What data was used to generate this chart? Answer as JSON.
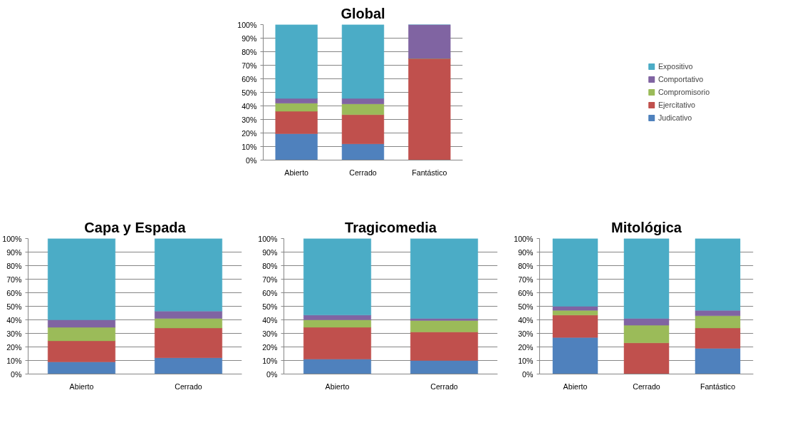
{
  "chart_data": [
    {
      "type": "bar",
      "title": "Global",
      "stacked": true,
      "legend": "right",
      "grid": "y",
      "categories": [
        "Abierto",
        "Cerrado",
        "Fantástico"
      ],
      "ylim": [
        0,
        100
      ],
      "yticks": [
        {
          "value": 0,
          "label": "0%"
        },
        {
          "value": 10,
          "label": "10%"
        },
        {
          "value": 20,
          "label": "20%"
        },
        {
          "value": 30,
          "label": "30%"
        },
        {
          "value": 40,
          "label": "40%"
        },
        {
          "value": 50,
          "label": "50%"
        },
        {
          "value": 60,
          "label": "60%"
        },
        {
          "value": 70,
          "label": "70%"
        },
        {
          "value": 80,
          "label": "80%"
        },
        {
          "value": 90,
          "label": "90%"
        },
        {
          "value": 100,
          "label": "100%"
        }
      ],
      "series": [
        {
          "name": "Judicativo",
          "color": "#4f81bd",
          "values": [
            19.5,
            12,
            0
          ]
        },
        {
          "name": "Ejercitativo",
          "color": "#c0504d",
          "values": [
            16.5,
            21.5,
            75
          ]
        },
        {
          "name": "Compromisorio",
          "color": "#9bbb59",
          "values": [
            6,
            8,
            0
          ]
        },
        {
          "name": "Comportativo",
          "color": "#8064a2",
          "values": [
            3.5,
            4,
            25
          ]
        },
        {
          "name": "Expositivo",
          "color": "#4bacc6",
          "values": [
            54.5,
            54.5,
            0
          ]
        }
      ]
    },
    {
      "type": "bar",
      "title": "Capa y Espada",
      "stacked": true,
      "grid": "y",
      "categories": [
        "Abierto",
        "Cerrado"
      ],
      "ylim": [
        0,
        100
      ],
      "yticks": [
        {
          "value": 0,
          "label": "0%"
        },
        {
          "value": 10,
          "label": "10%"
        },
        {
          "value": 20,
          "label": "20%"
        },
        {
          "value": 30,
          "label": "30%"
        },
        {
          "value": 40,
          "label": "40%"
        },
        {
          "value": 50,
          "label": "50%"
        },
        {
          "value": 60,
          "label": "60%"
        },
        {
          "value": 70,
          "label": "70%"
        },
        {
          "value": 80,
          "label": "80%"
        },
        {
          "value": 90,
          "label": "90%"
        },
        {
          "value": 100,
          "label": "100%"
        }
      ],
      "series": [
        {
          "color": "#4f81bd",
          "values": [
            9,
            12
          ]
        },
        {
          "color": "#c0504d",
          "values": [
            15.5,
            22
          ]
        },
        {
          "color": "#9bbb59",
          "values": [
            10,
            7
          ]
        },
        {
          "color": "#8064a2",
          "values": [
            5.5,
            5.5
          ]
        },
        {
          "color": "#4bacc6",
          "values": [
            60,
            53.5
          ]
        }
      ]
    },
    {
      "type": "bar",
      "title": "Tragicomedia",
      "stacked": true,
      "grid": "y",
      "categories": [
        "Abierto",
        "Cerrado"
      ],
      "ylim": [
        0,
        100
      ],
      "yticks": [
        {
          "value": 0,
          "label": "0%"
        },
        {
          "value": 10,
          "label": "10%"
        },
        {
          "value": 20,
          "label": "20%"
        },
        {
          "value": 30,
          "label": "30%"
        },
        {
          "value": 40,
          "label": "40%"
        },
        {
          "value": 50,
          "label": "50%"
        },
        {
          "value": 60,
          "label": "60%"
        },
        {
          "value": 70,
          "label": "70%"
        },
        {
          "value": 80,
          "label": "80%"
        },
        {
          "value": 90,
          "label": "90%"
        },
        {
          "value": 100,
          "label": "100%"
        }
      ],
      "series": [
        {
          "color": "#4f81bd",
          "values": [
            11,
            10
          ]
        },
        {
          "color": "#c0504d",
          "values": [
            23.5,
            21
          ]
        },
        {
          "color": "#9bbb59",
          "values": [
            5.5,
            8.5
          ]
        },
        {
          "color": "#8064a2",
          "values": [
            3.5,
            1.5
          ]
        },
        {
          "color": "#4bacc6",
          "values": [
            56.5,
            59
          ]
        }
      ]
    },
    {
      "type": "bar",
      "title": "Mitológica",
      "stacked": true,
      "grid": "y",
      "categories": [
        "Abierto",
        "Cerrado",
        "Fantástico"
      ],
      "ylim": [
        0,
        100
      ],
      "yticks": [
        {
          "value": 0,
          "label": "0%"
        },
        {
          "value": 10,
          "label": "10%"
        },
        {
          "value": 20,
          "label": "20%"
        },
        {
          "value": 30,
          "label": "30%"
        },
        {
          "value": 40,
          "label": "40%"
        },
        {
          "value": 50,
          "label": "50%"
        },
        {
          "value": 60,
          "label": "60%"
        },
        {
          "value": 70,
          "label": "70%"
        },
        {
          "value": 80,
          "label": "80%"
        },
        {
          "value": 90,
          "label": "90%"
        },
        {
          "value": 100,
          "label": "100%"
        }
      ],
      "series": [
        {
          "color": "#4f81bd",
          "values": [
            27,
            0,
            19
          ]
        },
        {
          "color": "#c0504d",
          "values": [
            16.5,
            23,
            15
          ]
        },
        {
          "color": "#9bbb59",
          "values": [
            3.5,
            13,
            9
          ]
        },
        {
          "color": "#8064a2",
          "values": [
            3,
            5,
            4
          ]
        },
        {
          "color": "#4bacc6",
          "values": [
            50,
            59,
            53
          ]
        }
      ]
    }
  ]
}
